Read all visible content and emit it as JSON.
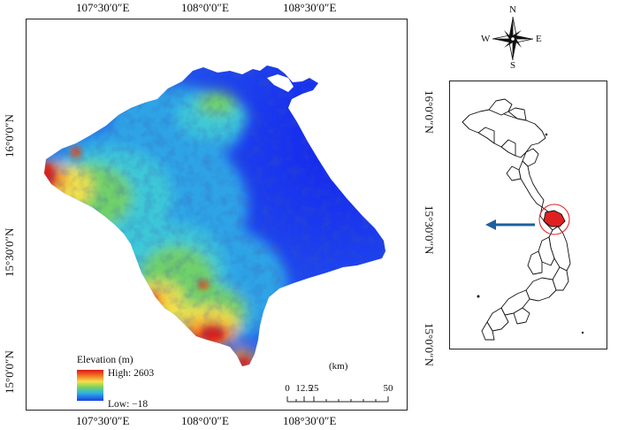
{
  "map": {
    "top_ticks": [
      "107°30′0″E",
      "108°0′0″E",
      "108°30′0″E"
    ],
    "bottom_ticks": [
      "107°30′0″E",
      "108°0′0″E",
      "108°30′0″E"
    ],
    "left_ticks": [
      "16°0′0″N",
      "15°30′0″N",
      "15°0′0″N"
    ],
    "right_ticks": [
      "16°0′0″N",
      "15°30′0″N",
      "15°0′0″N"
    ]
  },
  "legend": {
    "title": "Elevation (m)",
    "high_label": "High: 2603",
    "low_label": "Low: −18",
    "ramp_colors": [
      "#d7191c",
      "#f37021",
      "#f4e04d",
      "#7fd35a",
      "#2bb3e6",
      "#1d3fe0"
    ]
  },
  "scale": {
    "unit": "(km)",
    "labels": [
      "0",
      "12.5",
      "25",
      "50"
    ]
  },
  "compass": {
    "n": "N",
    "s": "S",
    "e": "E",
    "w": "W"
  },
  "locator": {
    "highlight_color": "#e02020",
    "circle_color": "#e02020",
    "arrow_color": "#1f5f9e"
  },
  "colors": {
    "deep_blue": "#1422ee",
    "blue": "#1f5cf0",
    "light_blue": "#2fa4e7",
    "cyan": "#3cc8d8",
    "green": "#6fd06a",
    "yellow": "#f1e24b",
    "orange": "#f08a2a",
    "red": "#d9201b"
  }
}
